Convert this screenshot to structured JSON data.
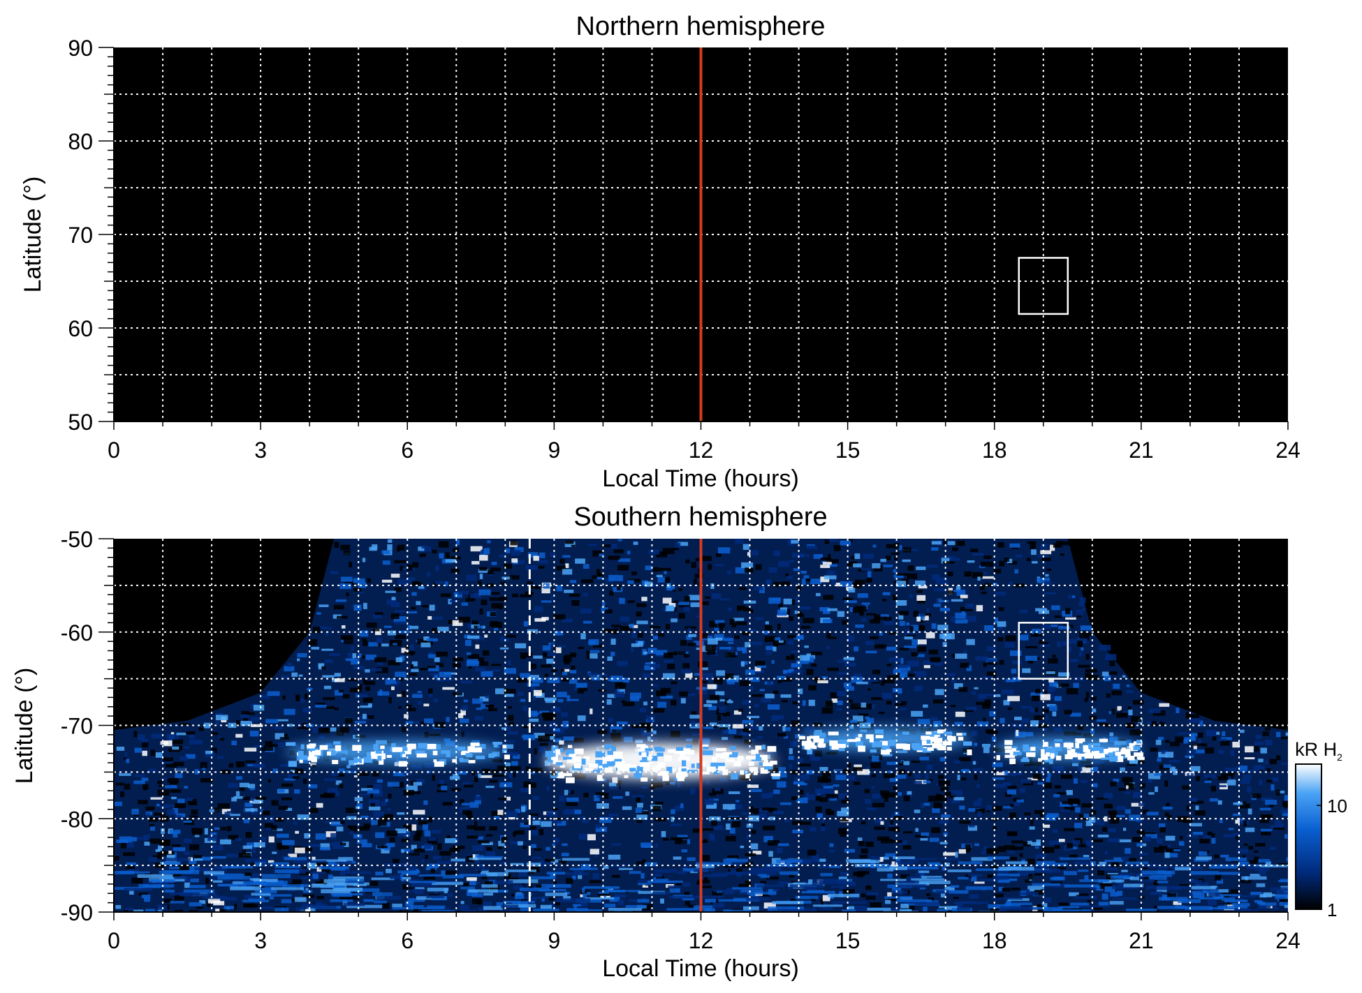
{
  "chart_data": [
    {
      "type": "heatmap",
      "title": "Northern hemisphere",
      "xlabel": "Local Time (hours)",
      "ylabel": "Latitude (°)",
      "xlim": [
        0,
        24
      ],
      "ylim": [
        50,
        90
      ],
      "xticks": [
        "0",
        "3",
        "6",
        "9",
        "12",
        "15",
        "18",
        "21",
        "24"
      ],
      "yticks": [
        "50",
        "60",
        "70",
        "80",
        "90"
      ],
      "x_grid_step": 1,
      "y_grid_step": 5,
      "grid": true,
      "background": "#000000",
      "emission": "none",
      "marker_line": {
        "x": 12,
        "color": "#d63b1f"
      },
      "box": {
        "x": [
          18.5,
          19.5
        ],
        "y": [
          61.5,
          67.5
        ]
      }
    },
    {
      "type": "heatmap",
      "title": "Southern hemisphere",
      "xlabel": "Local Time (hours)",
      "ylabel": "Latitude (°)",
      "xlim": [
        0,
        24
      ],
      "ylim": [
        -90,
        -50
      ],
      "xticks": [
        "0",
        "3",
        "6",
        "9",
        "12",
        "15",
        "18",
        "21",
        "24"
      ],
      "yticks": [
        "-90",
        "-80",
        "-70",
        "-60",
        "-50"
      ],
      "x_grid_step": 1,
      "y_grid_step": 5,
      "grid": true,
      "background": "#000000",
      "marker_line": {
        "x": 12,
        "color": "#d63b1f"
      },
      "dashed_line": {
        "x": 8.5,
        "color": "#ffffff"
      },
      "box": {
        "x": [
          18.5,
          19.5
        ],
        "y": [
          -65,
          -59
        ]
      },
      "coverage_edge": [
        [
          0,
          -70.5
        ],
        [
          1.5,
          -69.5
        ],
        [
          3,
          -66.5
        ],
        [
          4,
          -60
        ],
        [
          4.5,
          -50
        ],
        [
          19.5,
          -50
        ],
        [
          20,
          -60
        ],
        [
          21,
          -66.5
        ],
        [
          22.5,
          -69.5
        ],
        [
          24,
          -70.5
        ]
      ],
      "auroral_oval": [
        {
          "x": [
            3.5,
            8
          ],
          "lat": -72.8,
          "intensity": "bright"
        },
        {
          "x": [
            8.8,
            13.5
          ],
          "lat": -73.8,
          "intensity": "brightest"
        },
        {
          "x": [
            14,
            17.5
          ],
          "lat": -71.5,
          "intensity": "bright"
        },
        {
          "x": [
            18,
            21
          ],
          "lat": -72.5,
          "intensity": "bright"
        }
      ],
      "colorbar": {
        "label": "kR H",
        "label_subscript": "2",
        "ticks": [
          "1",
          "10"
        ],
        "scale": "log",
        "range": [
          1,
          25
        ],
        "colors": [
          "#000000",
          "#002a7a",
          "#0a5fd0",
          "#4aa3f5",
          "#ffffff"
        ]
      }
    }
  ]
}
